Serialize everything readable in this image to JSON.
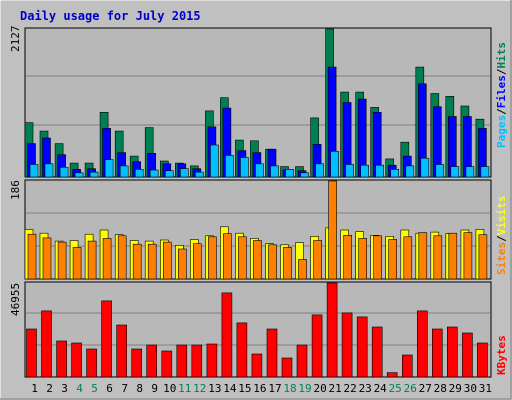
{
  "title": "Daily usage for July 2015",
  "colors": {
    "background": "#c0c0c0",
    "plot_bg": "#b8b8b8",
    "grid": "#808080",
    "title": "#0000cc",
    "pages": "#00c0ff",
    "files": "#0000ff",
    "hits": "#008050",
    "sites": "#ff8000",
    "visits": "#ffff00",
    "kbytes": "#ff0000",
    "weekday_label": "#000000",
    "weekend_label": "#00805c"
  },
  "chart_data": [
    {
      "type": "bar",
      "panel": "hits-files-pages",
      "ylim": [
        0,
        2127
      ],
      "ytick_label": "2127",
      "legend": [
        "Pages",
        "/",
        "Files",
        "/",
        "Hits"
      ],
      "grid": true,
      "categories": [
        "1",
        "2",
        "3",
        "4",
        "5",
        "6",
        "7",
        "8",
        "9",
        "10",
        "11",
        "12",
        "13",
        "14",
        "15",
        "16",
        "17",
        "18",
        "19",
        "20",
        "21",
        "22",
        "23",
        "24",
        "25",
        "26",
        "27",
        "28",
        "29",
        "30",
        "31"
      ],
      "series": [
        {
          "name": "Hits",
          "values": [
            780,
            660,
            480,
            200,
            200,
            930,
            660,
            300,
            710,
            230,
            200,
            160,
            950,
            1140,
            530,
            520,
            400,
            150,
            150,
            850,
            2127,
            1220,
            1220,
            1000,
            260,
            500,
            1580,
            1200,
            1160,
            1020,
            830
          ]
        },
        {
          "name": "Files",
          "values": [
            480,
            560,
            320,
            110,
            120,
            700,
            350,
            220,
            340,
            190,
            190,
            120,
            720,
            990,
            380,
            350,
            400,
            100,
            90,
            470,
            1580,
            1070,
            1120,
            930,
            170,
            300,
            1340,
            1010,
            870,
            870,
            700
          ]
        },
        {
          "name": "Pages",
          "values": [
            180,
            190,
            140,
            60,
            70,
            250,
            160,
            110,
            100,
            90,
            120,
            70,
            460,
            310,
            280,
            190,
            160,
            110,
            60,
            190,
            370,
            180,
            170,
            170,
            110,
            160,
            270,
            180,
            150,
            150,
            150
          ]
        }
      ]
    },
    {
      "type": "bar",
      "panel": "sites-visits",
      "ylim": [
        0,
        186
      ],
      "ytick_label": "186",
      "legend": [
        "Sites",
        "/",
        "Visits"
      ],
      "grid": true,
      "categories": [
        "1",
        "2",
        "3",
        "4",
        "5",
        "6",
        "7",
        "8",
        "9",
        "10",
        "11",
        "12",
        "13",
        "14",
        "15",
        "16",
        "17",
        "18",
        "19",
        "20",
        "21",
        "22",
        "23",
        "24",
        "25",
        "26",
        "27",
        "28",
        "29",
        "30",
        "31"
      ],
      "series": [
        {
          "name": "Visits",
          "values": [
            94,
            87,
            72,
            73,
            85,
            93,
            84,
            73,
            72,
            74,
            64,
            75,
            82,
            99,
            87,
            77,
            67,
            65,
            69,
            81,
            97,
            93,
            90,
            83,
            81,
            93,
            87,
            89,
            86,
            93,
            94
          ]
        },
        {
          "name": "Sites",
          "values": [
            85,
            78,
            70,
            60,
            72,
            77,
            82,
            66,
            66,
            70,
            57,
            67,
            80,
            86,
            80,
            73,
            65,
            60,
            37,
            73,
            186,
            83,
            77,
            82,
            75,
            80,
            88,
            82,
            87,
            88,
            84
          ]
        }
      ]
    },
    {
      "type": "bar",
      "panel": "kbytes",
      "ylim": [
        0,
        46955
      ],
      "ytick_label": "46955",
      "legend": [
        "KBytes"
      ],
      "grid": true,
      "categories": [
        "1",
        "2",
        "3",
        "4",
        "5",
        "6",
        "7",
        "8",
        "9",
        "10",
        "11",
        "12",
        "13",
        "14",
        "15",
        "16",
        "17",
        "18",
        "19",
        "20",
        "21",
        "22",
        "23",
        "24",
        "25",
        "26",
        "27",
        "28",
        "29",
        "30",
        "31"
      ],
      "series": [
        {
          "name": "KBytes",
          "values": [
            24000,
            33000,
            18000,
            17000,
            14000,
            38000,
            26000,
            14000,
            16000,
            13000,
            16000,
            16000,
            16500,
            42000,
            27000,
            11500,
            24000,
            9500,
            16000,
            31000,
            46955,
            32000,
            30000,
            25000,
            2200,
            11000,
            33000,
            24000,
            25000,
            22000,
            17000
          ]
        }
      ]
    }
  ],
  "x_axis": {
    "labels": [
      "1",
      "2",
      "3",
      "4",
      "5",
      "6",
      "7",
      "8",
      "9",
      "10",
      "11",
      "12",
      "13",
      "14",
      "15",
      "16",
      "17",
      "18",
      "19",
      "20",
      "21",
      "22",
      "23",
      "24",
      "25",
      "26",
      "27",
      "28",
      "29",
      "30",
      "31"
    ],
    "weekend": [
      4,
      5,
      11,
      12,
      18,
      19,
      25,
      26
    ]
  }
}
